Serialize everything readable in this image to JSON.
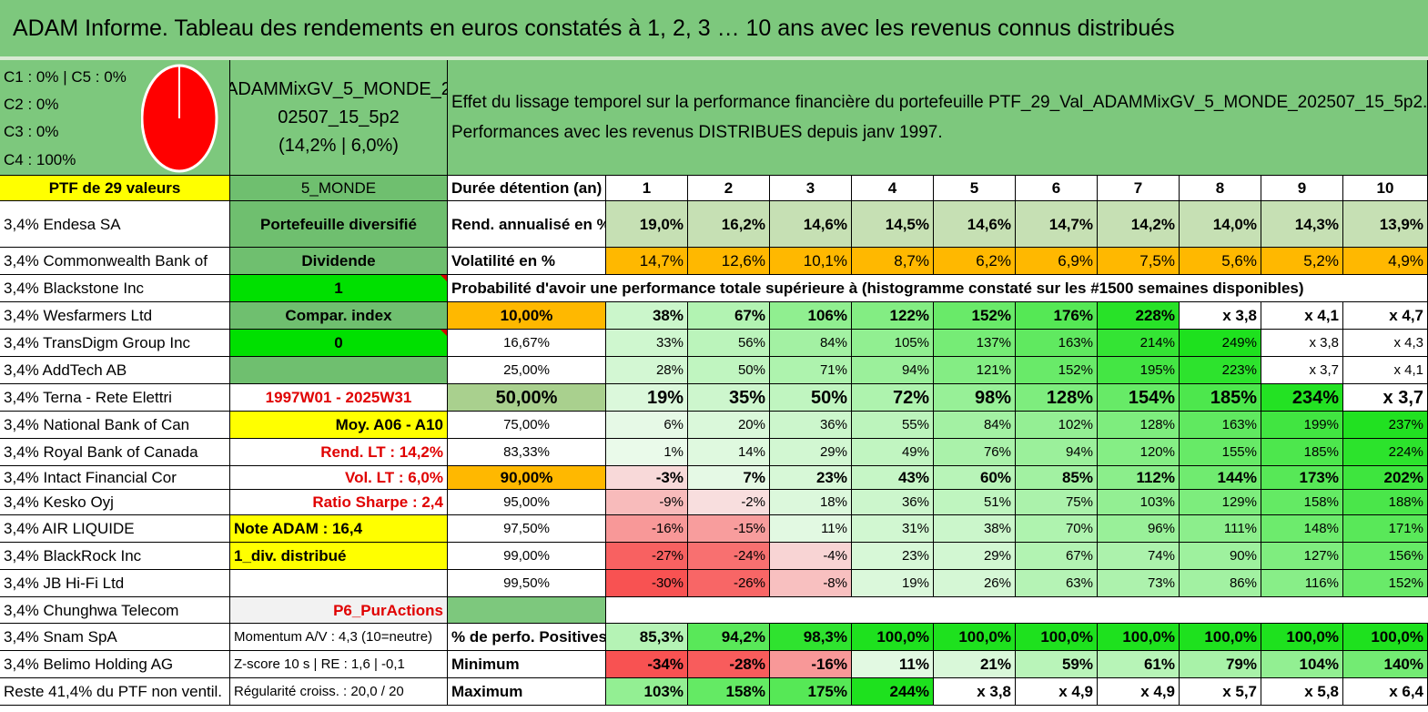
{
  "title": "ADAM Informe. Tableau des rendements en euros constatés à 1, 2, 3 … 10 ans avec les revenus connus distribués",
  "allocation": {
    "c1c5": "C1 : 0% | C5 : 0%",
    "c2": "C2 : 0%",
    "c3": "C3 : 0%",
    "c4": "C4 : 100%",
    "pie_color": "#ff0000"
  },
  "portfolio": {
    "name_line1": "ADAMMixGV_5_MONDE_2",
    "name_line2": "02507_15_5p2",
    "name_line3": "(14,2% | 6,0%)",
    "desc_line1": "Effet du lissage temporel sur la performance financière du portefeuille PTF_29_Val_ADAMMixGV_5_MONDE_202507_15_5p2.",
    "desc_line2": "Performances avec les revenus DISTRIBUES depuis janv 1997."
  },
  "holdings_header": "PTF de 29 valeurs",
  "holdings": [
    "3,4% Endesa SA",
    "3,4% Commonwealth Bank of",
    "3,4% Blackstone Inc",
    "3,4% Wesfarmers Ltd",
    "3,4% TransDigm Group Inc",
    "3,4% AddTech AB",
    "3,4% Terna - Rete Elettri",
    "3,4% National Bank of Can",
    "3,4% Royal Bank of Canada",
    "3,4% Intact Financial Cor",
    "3,4% Kesko Oyj",
    "3,4% AIR LIQUIDE",
    "3,4% BlackRock Inc",
    "3,4% JB Hi-Fi Ltd",
    "3,4% Chunghwa Telecom",
    "3,4% Snam SpA",
    "3,4% Belimo Holding AG",
    "Reste 41,4% du PTF non ventil."
  ],
  "info": [
    "5_MONDE",
    "Portefeuille diversifié",
    "Dividende",
    "1",
    "Compar. index",
    "0",
    "",
    "1997W01 - 2025W31",
    "Moy. A06 - A10",
    "Rend. LT : 14,2%",
    "Vol. LT : 6,0%",
    "Ratio Sharpe : 2,4",
    "Note ADAM : 16,4",
    "1_div. distribué",
    "",
    "P6_PurActions",
    "Momentum A/V : 4,3 (10=neutre)",
    "Z-score 10 s | RE : 1,6 | -0,1",
    "Régularité croiss. : 20,0 / 20"
  ],
  "table": {
    "duration_label": "Durée détention (an)",
    "years": [
      "1",
      "2",
      "3",
      "4",
      "5",
      "6",
      "7",
      "8",
      "9",
      "10"
    ],
    "rend_label": "Rend. annualisé en %",
    "rend": [
      "19,0%",
      "16,2%",
      "14,6%",
      "14,5%",
      "14,6%",
      "14,7%",
      "14,2%",
      "14,0%",
      "14,3%",
      "13,9%"
    ],
    "vol_label": "Volatilité en %",
    "vol": [
      "14,7%",
      "12,6%",
      "10,1%",
      "8,7%",
      "6,2%",
      "6,9%",
      "7,5%",
      "5,6%",
      "5,2%",
      "4,9%"
    ],
    "prob_header": "Probabilité d'avoir une performance totale supérieure à (histogramme constaté sur les #1500 semaines disponibles)",
    "prob_rows": [
      {
        "label": "10,00%",
        "values": [
          "38%",
          "67%",
          "106%",
          "122%",
          "152%",
          "176%",
          "228%",
          "x 3,8",
          "x 4,1",
          "x 4,7"
        ]
      },
      {
        "label": "16,67%",
        "values": [
          "33%",
          "56%",
          "84%",
          "105%",
          "137%",
          "163%",
          "214%",
          "249%",
          "x 3,8",
          "x 4,3"
        ]
      },
      {
        "label": "25,00%",
        "values": [
          "28%",
          "50%",
          "71%",
          "94%",
          "121%",
          "152%",
          "195%",
          "223%",
          "x 3,7",
          "x 4,1"
        ]
      },
      {
        "label": "50,00%",
        "values": [
          "19%",
          "35%",
          "50%",
          "72%",
          "98%",
          "128%",
          "154%",
          "185%",
          "234%",
          "x 3,7"
        ]
      },
      {
        "label": "75,00%",
        "values": [
          "6%",
          "20%",
          "36%",
          "55%",
          "84%",
          "102%",
          "128%",
          "163%",
          "199%",
          "237%"
        ]
      },
      {
        "label": "83,33%",
        "values": [
          "1%",
          "14%",
          "29%",
          "49%",
          "76%",
          "94%",
          "120%",
          "155%",
          "185%",
          "224%"
        ]
      },
      {
        "label": "90,00%",
        "values": [
          "-3%",
          "7%",
          "23%",
          "43%",
          "60%",
          "85%",
          "112%",
          "144%",
          "173%",
          "202%"
        ]
      },
      {
        "label": "95,00%",
        "values": [
          "-9%",
          "-2%",
          "18%",
          "36%",
          "51%",
          "75%",
          "103%",
          "129%",
          "158%",
          "188%"
        ]
      },
      {
        "label": "97,50%",
        "values": [
          "-16%",
          "-15%",
          "11%",
          "31%",
          "38%",
          "70%",
          "96%",
          "111%",
          "148%",
          "171%"
        ]
      },
      {
        "label": "99,00%",
        "values": [
          "-27%",
          "-24%",
          "-4%",
          "23%",
          "29%",
          "67%",
          "74%",
          "90%",
          "127%",
          "156%"
        ]
      },
      {
        "label": "99,50%",
        "values": [
          "-30%",
          "-26%",
          "-8%",
          "19%",
          "26%",
          "63%",
          "73%",
          "86%",
          "116%",
          "152%"
        ]
      }
    ],
    "pos_label": "% de perfo. Positives",
    "pos": [
      "85,3%",
      "94,2%",
      "98,3%",
      "100,0%",
      "100,0%",
      "100,0%",
      "100,0%",
      "100,0%",
      "100,0%",
      "100,0%"
    ],
    "min_label": "Minimum",
    "min": [
      "-34%",
      "-28%",
      "-16%",
      "11%",
      "21%",
      "59%",
      "61%",
      "79%",
      "104%",
      "140%"
    ],
    "max_label": "Maximum",
    "max": [
      "103%",
      "158%",
      "175%",
      "244%",
      "x 3,8",
      "x 4,9",
      "x 4,9",
      "x 5,7",
      "x 5,8",
      "x 6,4"
    ]
  },
  "colors": {
    "header_green": "#7dc87d",
    "light_green_info": "#6fbf6f",
    "bright_green": "#00e000",
    "yellow": "#ffff00",
    "orange": "#ffb800",
    "rend_green": "#c6e0b4",
    "red_text": "#e00000"
  }
}
